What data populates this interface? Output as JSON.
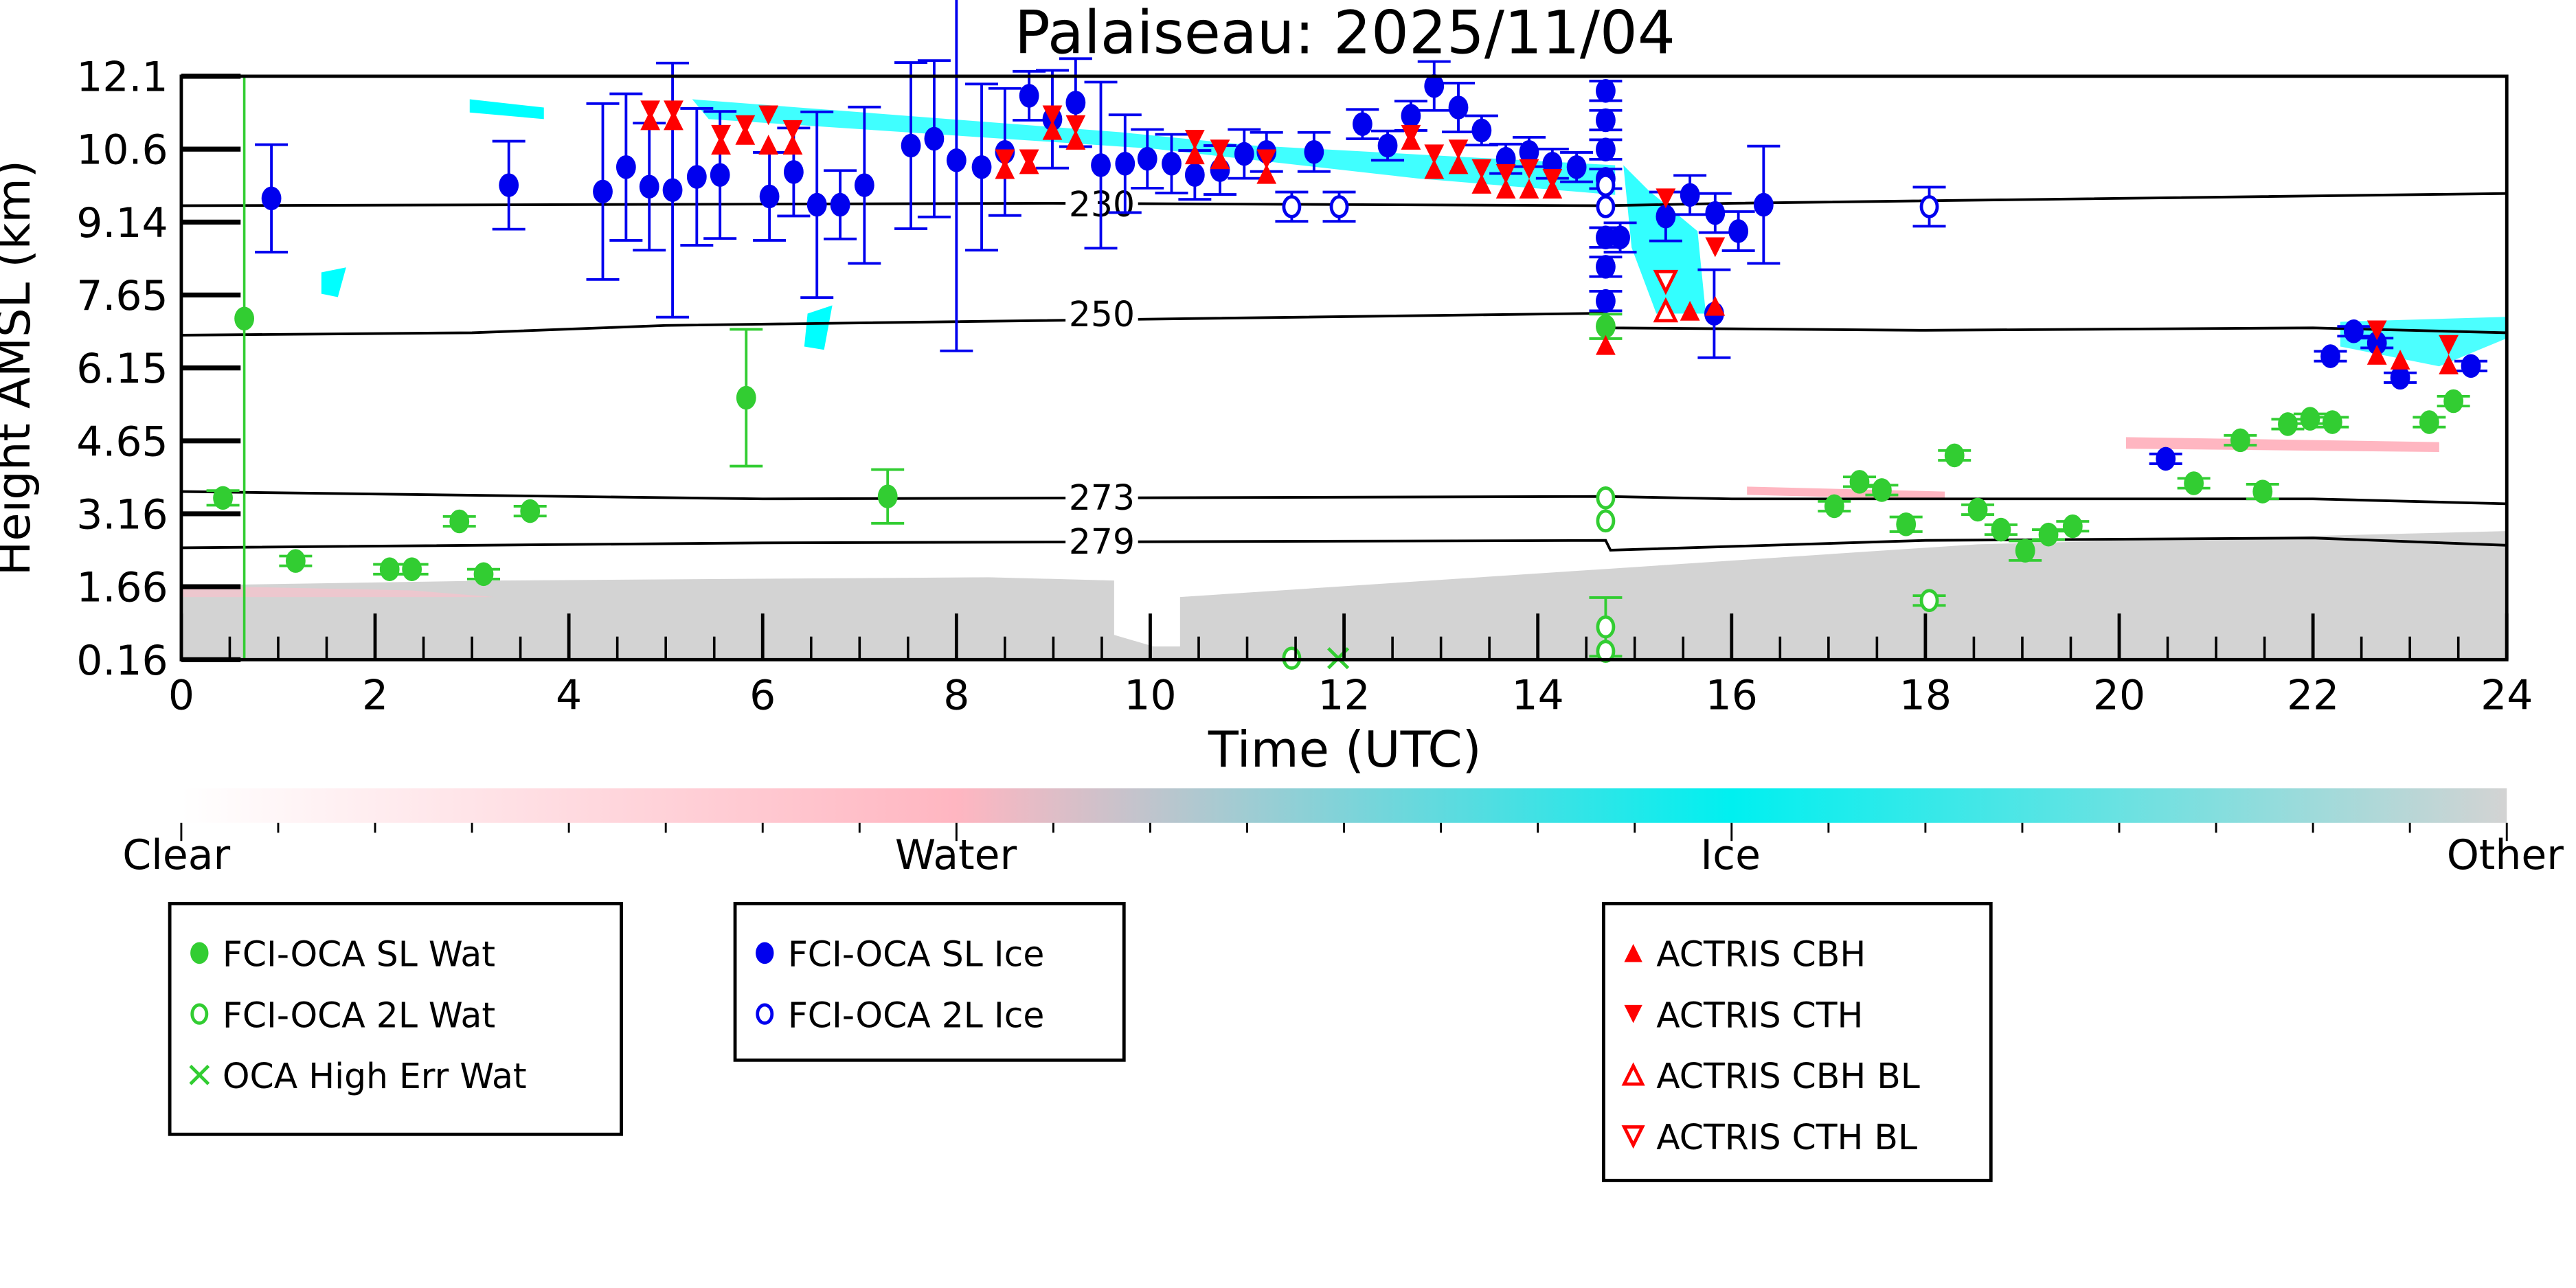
{
  "chart_data": {
    "type": "scatter",
    "title": "Palaiseau: 2025/11/04",
    "xlabel": "Time (UTC)",
    "ylabel": "Height AMSL (km)",
    "xlim": [
      0,
      24
    ],
    "ylim": [
      0.16,
      12.1
    ],
    "xticks": [
      "0",
      "2",
      "4",
      "6",
      "8",
      "10",
      "12",
      "14",
      "16",
      "18",
      "20",
      "22",
      "24"
    ],
    "yticks": [
      "0.16",
      "1.66",
      "3.16",
      "4.65",
      "6.15",
      "7.65",
      "9.14",
      "10.6",
      "12.1"
    ],
    "isotherms": [
      {
        "label": "230",
        "points": [
          [
            0,
            9.45
          ],
          [
            9,
            9.5
          ],
          [
            14.7,
            9.45
          ],
          [
            16,
            9.5
          ],
          [
            24,
            9.7
          ]
        ]
      },
      {
        "label": "250",
        "points": [
          [
            0,
            6.8
          ],
          [
            3,
            6.85
          ],
          [
            5,
            7.0
          ],
          [
            14.7,
            7.25
          ],
          [
            14.75,
            6.95
          ],
          [
            18,
            6.9
          ],
          [
            22,
            6.95
          ],
          [
            24,
            6.85
          ]
        ]
      },
      {
        "label": "273",
        "points": [
          [
            0,
            3.6
          ],
          [
            6,
            3.45
          ],
          [
            14.7,
            3.5
          ],
          [
            16,
            3.45
          ],
          [
            22,
            3.45
          ],
          [
            24,
            3.35
          ]
        ]
      },
      {
        "label": "279",
        "points": [
          [
            0,
            2.45
          ],
          [
            6,
            2.55
          ],
          [
            14.7,
            2.6
          ],
          [
            14.75,
            2.4
          ],
          [
            18,
            2.6
          ],
          [
            22,
            2.65
          ],
          [
            24,
            2.5
          ]
        ]
      }
    ],
    "series": [
      {
        "name": "FCI-OCA SL Wat",
        "color": "#32cd32",
        "marker": "filled-circle",
        "points": [
          [
            0.43,
            3.47,
            0.15
          ],
          [
            0.65,
            7.14,
            0
          ],
          [
            1.18,
            2.18,
            0.1
          ],
          [
            2.15,
            2.01,
            0.1
          ],
          [
            2.38,
            2.01,
            0.1
          ],
          [
            2.87,
            2.99,
            0.1
          ],
          [
            3.12,
            1.91,
            0.1
          ],
          [
            3.6,
            3.2,
            0.1
          ],
          [
            5.83,
            5.52,
            1.4
          ],
          [
            7.29,
            3.5,
            0.55
          ],
          [
            14.7,
            6.98,
            0.25
          ],
          [
            17.06,
            3.3,
            0.1
          ],
          [
            17.32,
            3.8,
            0.1
          ],
          [
            17.55,
            3.63,
            0.1
          ],
          [
            17.8,
            2.93,
            0.15
          ],
          [
            18.3,
            4.34,
            0.1
          ],
          [
            18.54,
            3.23,
            0.1
          ],
          [
            18.78,
            2.82,
            0.1
          ],
          [
            19.03,
            2.39,
            0.2
          ],
          [
            19.27,
            2.72,
            0.1
          ],
          [
            19.52,
            2.89,
            0.1
          ],
          [
            20.77,
            3.77,
            0.1
          ],
          [
            21.25,
            4.65,
            0.1
          ],
          [
            21.48,
            3.6,
            0.15
          ],
          [
            21.74,
            4.98,
            0.1
          ],
          [
            21.97,
            5.09,
            0.1
          ],
          [
            22.2,
            5.02,
            0.1
          ],
          [
            23.2,
            5.02,
            0.1
          ],
          [
            23.45,
            5.45,
            0.1
          ]
        ]
      },
      {
        "name": "FCI-OCA 2L Wat",
        "color": "#32cd32",
        "marker": "open-circle",
        "points": [
          [
            14.7,
            3.47,
            0
          ],
          [
            14.7,
            3.0,
            0
          ],
          [
            14.7,
            0.83,
            0.6
          ],
          [
            14.7,
            0.33,
            0
          ],
          [
            18.04,
            1.37,
            0.1
          ],
          [
            11.46,
            0.19,
            0
          ]
        ]
      },
      {
        "name": "OCA High Err Wat",
        "color": "#32cd32",
        "marker": "x",
        "points": [
          [
            11.94,
            0.19,
            0
          ]
        ]
      },
      {
        "name": "FCI-OCA SL Ice",
        "color": "#0000ee",
        "marker": "filled-circle",
        "points": [
          [
            0.93,
            9.6,
            1.1
          ],
          [
            3.38,
            9.87,
            0.9
          ],
          [
            4.35,
            9.74,
            1.8
          ],
          [
            4.59,
            10.24,
            1.5
          ],
          [
            4.83,
            9.84,
            1.3
          ],
          [
            5.07,
            9.77,
            2.6
          ],
          [
            5.32,
            10.04,
            1.4
          ],
          [
            5.56,
            10.08,
            1.3
          ],
          [
            6.07,
            9.64,
            0.9
          ],
          [
            6.32,
            10.14,
            0.9
          ],
          [
            6.56,
            9.47,
            1.9
          ],
          [
            6.8,
            9.47,
            0.7
          ],
          [
            7.05,
            9.87,
            1.6
          ],
          [
            7.53,
            10.68,
            1.7
          ],
          [
            7.77,
            10.82,
            1.6
          ],
          [
            8.0,
            10.38,
            3.9
          ],
          [
            8.26,
            10.24,
            1.7
          ],
          [
            8.5,
            10.55,
            1.3
          ],
          [
            8.75,
            11.7,
            0.5
          ],
          [
            8.99,
            11.22,
            1.0
          ],
          [
            9.23,
            11.56,
            0.9
          ],
          [
            9.49,
            10.28,
            1.7
          ],
          [
            9.74,
            10.31,
            1.0
          ],
          [
            9.97,
            10.41,
            0.6
          ],
          [
            10.22,
            10.31,
            0.6
          ],
          [
            10.46,
            10.08,
            0.5
          ],
          [
            10.72,
            10.18,
            0.5
          ],
          [
            10.97,
            10.51,
            0.5
          ],
          [
            11.2,
            10.55,
            0.4
          ],
          [
            11.69,
            10.55,
            0.4
          ],
          [
            12.19,
            11.12,
            0.3
          ],
          [
            12.45,
            10.68,
            0.3
          ],
          [
            12.69,
            11.29,
            0.3
          ],
          [
            12.93,
            11.9,
            0.5
          ],
          [
            13.18,
            11.46,
            0.5
          ],
          [
            13.42,
            10.99,
            0.3
          ],
          [
            13.67,
            10.41,
            0.3
          ],
          [
            13.91,
            10.55,
            0.3
          ],
          [
            14.15,
            10.31,
            0.3
          ],
          [
            14.4,
            10.24,
            0.3
          ],
          [
            14.7,
            11.8,
            0.2
          ],
          [
            14.7,
            11.2,
            0.2
          ],
          [
            14.7,
            10.6,
            0.2
          ],
          [
            14.7,
            10.0,
            0.2
          ],
          [
            14.7,
            8.8,
            0.2
          ],
          [
            14.7,
            8.2,
            0.2
          ],
          [
            14.7,
            7.5,
            0.2
          ],
          [
            14.85,
            8.8,
            0.3
          ],
          [
            15.32,
            9.23,
            0.5
          ],
          [
            15.57,
            9.67,
            0.4
          ],
          [
            15.83,
            9.3,
            0.4
          ],
          [
            16.07,
            8.93,
            0.4
          ],
          [
            16.33,
            9.47,
            1.2
          ],
          [
            15.82,
            7.24,
            0.9
          ],
          [
            20.48,
            4.27,
            0.1
          ],
          [
            22.18,
            6.37,
            0.1
          ],
          [
            22.42,
            6.88,
            0.1
          ],
          [
            22.66,
            6.64,
            0.1
          ],
          [
            22.9,
            5.93,
            0.1
          ],
          [
            23.63,
            6.17,
            0.1
          ]
        ]
      },
      {
        "name": "FCI-OCA 2L Ice",
        "color": "#0000ee",
        "marker": "open-circle",
        "points": [
          [
            11.46,
            9.43,
            0.3
          ],
          [
            11.95,
            9.43,
            0.3
          ],
          [
            14.7,
            9.87,
            0
          ],
          [
            14.7,
            9.43,
            0
          ],
          [
            18.04,
            9.43,
            0.4
          ]
        ]
      },
      {
        "name": "ACTRIS CBH",
        "color": "#ff0000",
        "marker": "triangle-up",
        "points": [
          [
            4.84,
            11.2
          ],
          [
            5.08,
            11.2
          ],
          [
            5.57,
            10.7
          ],
          [
            5.82,
            10.9
          ],
          [
            6.06,
            10.7
          ],
          [
            6.31,
            10.7
          ],
          [
            8.5,
            10.2
          ],
          [
            8.75,
            10.3
          ],
          [
            8.99,
            11.0
          ],
          [
            9.23,
            10.8
          ],
          [
            10.46,
            10.5
          ],
          [
            10.72,
            10.4
          ],
          [
            11.2,
            10.1
          ],
          [
            12.69,
            10.8
          ],
          [
            12.93,
            10.2
          ],
          [
            13.18,
            10.3
          ],
          [
            13.42,
            9.9
          ],
          [
            13.67,
            9.8
          ],
          [
            13.91,
            9.8
          ],
          [
            14.15,
            9.8
          ],
          [
            14.7,
            6.6
          ],
          [
            15.32,
            7.3
          ],
          [
            15.57,
            7.3
          ],
          [
            15.83,
            7.4
          ],
          [
            22.66,
            6.4
          ],
          [
            22.9,
            6.3
          ],
          [
            23.4,
            6.2
          ]
        ]
      },
      {
        "name": "ACTRIS CTH",
        "color": "#ff0000",
        "marker": "triangle-down",
        "points": [
          [
            4.84,
            11.4
          ],
          [
            5.08,
            11.4
          ],
          [
            5.57,
            10.9
          ],
          [
            5.82,
            11.1
          ],
          [
            6.06,
            11.3
          ],
          [
            6.31,
            11.0
          ],
          [
            8.5,
            10.4
          ],
          [
            8.75,
            10.4
          ],
          [
            8.99,
            11.3
          ],
          [
            9.23,
            11.1
          ],
          [
            10.46,
            10.8
          ],
          [
            10.72,
            10.6
          ],
          [
            11.2,
            10.4
          ],
          [
            12.69,
            10.9
          ],
          [
            12.93,
            10.5
          ],
          [
            13.18,
            10.6
          ],
          [
            13.42,
            10.2
          ],
          [
            13.67,
            10.1
          ],
          [
            13.91,
            10.2
          ],
          [
            14.15,
            10.0
          ],
          [
            15.32,
            9.6
          ],
          [
            15.83,
            8.6
          ],
          [
            22.66,
            6.9
          ],
          [
            23.4,
            6.6
          ]
        ]
      },
      {
        "name": "ACTRIS CBH BL",
        "color": "#ff0000",
        "marker": "open-triangle-up",
        "points": [
          [
            15.32,
            7.3
          ]
        ]
      },
      {
        "name": "ACTRIS CTH BL",
        "color": "#ff0000",
        "marker": "open-triangle-down",
        "points": [
          [
            15.32,
            7.9
          ]
        ]
      }
    ],
    "colorbar": {
      "labels": [
        "Clear",
        "Water",
        "Ice",
        "Other"
      ],
      "colors": [
        "#ffffff",
        "#ffb6c1",
        "#00ffff",
        "#d3d3d3"
      ]
    },
    "legend_groups": [
      [
        "FCI-OCA SL Wat",
        "FCI-OCA 2L Wat",
        "OCA High Err Wat"
      ],
      [
        "FCI-OCA SL Ice",
        "FCI-OCA 2L Ice"
      ],
      [
        "ACTRIS CBH",
        "ACTRIS CTH",
        "ACTRIS CBH BL",
        "ACTRIS CTH BL"
      ]
    ]
  }
}
